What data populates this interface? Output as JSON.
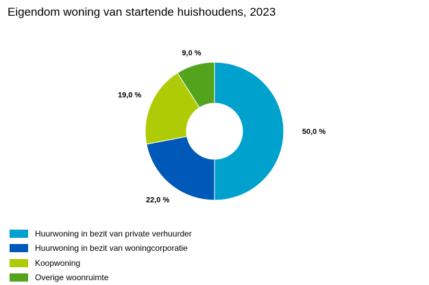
{
  "chart_data": {
    "type": "pie",
    "variant": "donut",
    "title": "Eigendom woning van startende huishoudens, 2023",
    "categories": [
      "Huurwoning in bezit van private verhuurder",
      "Huurwoning in bezit van woningcorporatie",
      "Koopwoning",
      "Overige woonruimte"
    ],
    "values": [
      50.0,
      22.0,
      19.0,
      9.0
    ],
    "data_labels": [
      "50,0 %",
      "22,0 %",
      "19,0 %",
      "9,0 %"
    ],
    "colors": [
      "#00A1CD",
      "#0058B8",
      "#AFCB05",
      "#53A31D"
    ],
    "legend_position": "bottom-left",
    "start_angle": "12 o'clock",
    "direction": "clockwise"
  }
}
